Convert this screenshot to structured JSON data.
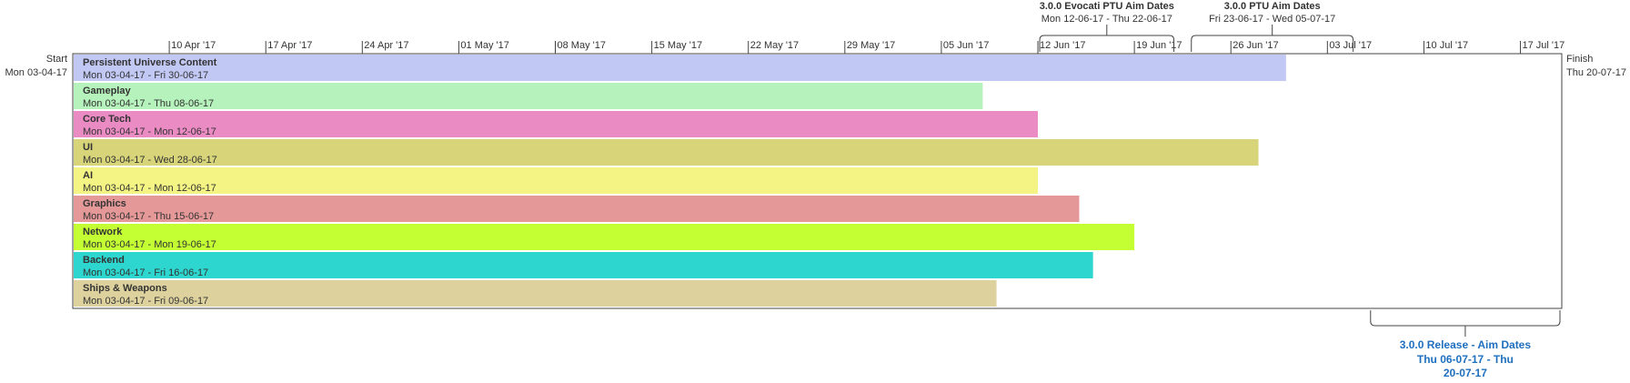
{
  "chart_data": {
    "type": "gantt",
    "axis": {
      "start_date": "2017-04-03",
      "end_date": "2017-07-20",
      "ticks": [
        "10 Apr '17",
        "17 Apr '17",
        "24 Apr '17",
        "01 May '17",
        "08 May '17",
        "15 May '17",
        "22 May '17",
        "29 May '17",
        "05 Jun '17",
        "12 Jun '17",
        "19 Jun '17",
        "26 Jun '17",
        "03 Jul '17",
        "10 Jul '17",
        "17 Jul '17"
      ],
      "tick_dates": [
        "2017-04-10",
        "2017-04-17",
        "2017-04-24",
        "2017-05-01",
        "2017-05-08",
        "2017-05-15",
        "2017-05-22",
        "2017-05-29",
        "2017-06-05",
        "2017-06-12",
        "2017-06-19",
        "2017-06-26",
        "2017-07-03",
        "2017-07-10",
        "2017-07-17"
      ]
    },
    "start_marker": {
      "label": "Start",
      "date_text": "Mon 03-04-17"
    },
    "finish_marker": {
      "label": "Finish",
      "date_text": "Thu 20-07-17"
    },
    "tasks": [
      {
        "name": "Persistent Universe Content",
        "dates_text": "Mon 03-04-17 - Fri 30-06-17",
        "start": "2017-04-03",
        "end": "2017-06-30",
        "color": "#c2c8f4"
      },
      {
        "name": "Gameplay",
        "dates_text": "Mon 03-04-17 - Thu 08-06-17",
        "start": "2017-04-03",
        "end": "2017-06-08",
        "color": "#b6f2bb"
      },
      {
        "name": "Core Tech",
        "dates_text": "Mon 03-04-17 - Mon 12-06-17",
        "start": "2017-04-03",
        "end": "2017-06-12",
        "color": "#ea8bc4"
      },
      {
        "name": "UI",
        "dates_text": "Mon 03-04-17 - Wed 28-06-17",
        "start": "2017-04-03",
        "end": "2017-06-28",
        "color": "#d7d47a"
      },
      {
        "name": "AI",
        "dates_text": "Mon 03-04-17 - Mon 12-06-17",
        "start": "2017-04-03",
        "end": "2017-06-12",
        "color": "#f4f484"
      },
      {
        "name": "Graphics",
        "dates_text": "Mon 03-04-17 - Thu 15-06-17",
        "start": "2017-04-03",
        "end": "2017-06-15",
        "color": "#e49898"
      },
      {
        "name": "Network",
        "dates_text": "Mon 03-04-17 - Mon 19-06-17",
        "start": "2017-04-03",
        "end": "2017-06-19",
        "color": "#c3ff33"
      },
      {
        "name": "Backend",
        "dates_text": "Mon 03-04-17 - Fri 16-06-17",
        "start": "2017-04-03",
        "end": "2017-06-16",
        "color": "#2dd7cf"
      },
      {
        "name": "Ships & Weapons",
        "dates_text": "Mon 03-04-17 - Fri 09-06-17",
        "start": "2017-04-03",
        "end": "2017-06-09",
        "color": "#ddd29e"
      }
    ],
    "callouts": [
      {
        "title": "3.0.0 Evocati PTU Aim Dates",
        "dates_text": "Mon 12-06-17 - Thu 22-06-17",
        "start": "2017-06-12",
        "end": "2017-06-22",
        "position": "above",
        "color": "#333333"
      },
      {
        "title": "3.0.0 PTU Aim Dates",
        "dates_text": "Fri 23-06-17 - Wed 05-07-17",
        "start": "2017-06-23",
        "end": "2017-07-05",
        "position": "above",
        "color": "#333333"
      },
      {
        "title": "3.0.0 Release - Aim Dates",
        "dates_lines": [
          "Thu 06-07-17 - Thu",
          "20-07-17"
        ],
        "start": "2017-07-06",
        "end": "2017-07-20",
        "position": "below",
        "color": "#1f6fbf"
      }
    ]
  }
}
